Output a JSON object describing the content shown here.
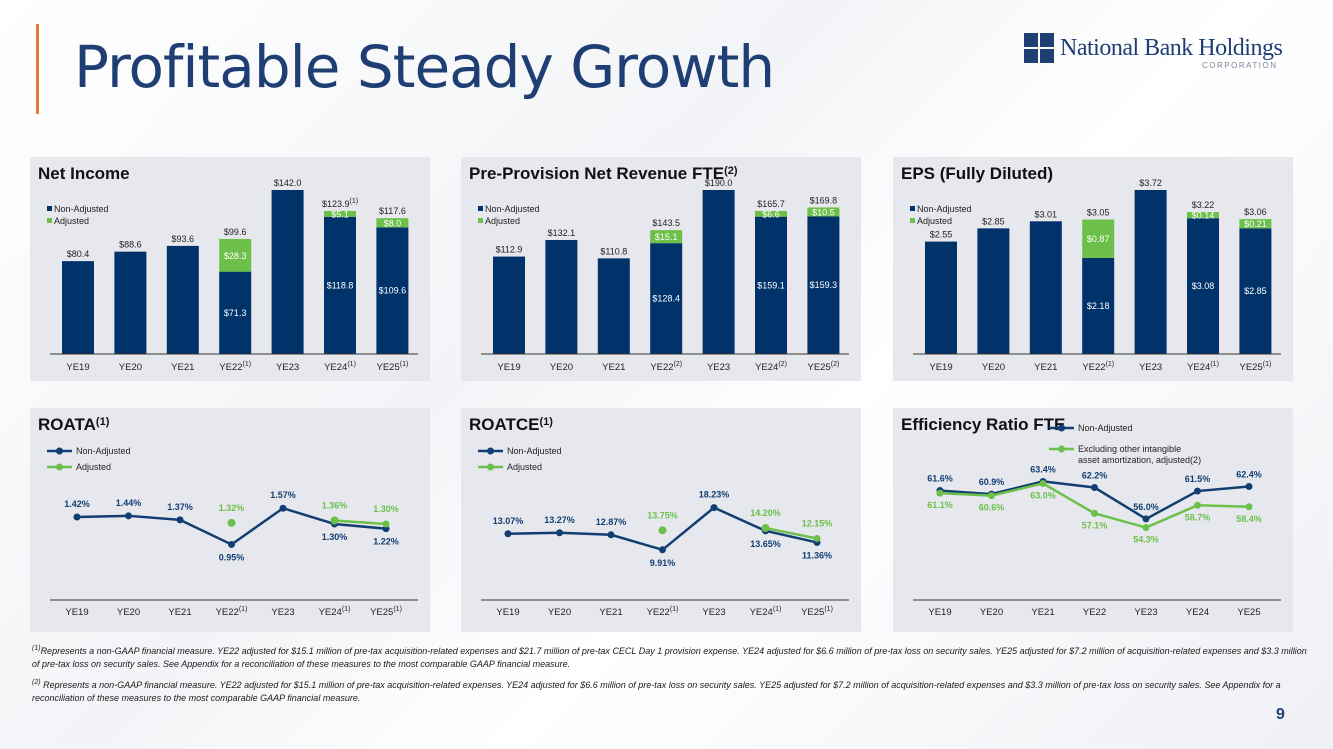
{
  "page": {
    "title": "Profitable Steady Growth",
    "page_number": "9",
    "logo_name": "National Bank Holdings",
    "logo_sub": "CORPORATION"
  },
  "colors": {
    "navy": "#00336a",
    "green": "#6cc04a",
    "panel": "#e6e8ee",
    "accent": "#e8793a",
    "line_navy": "#123e72",
    "line_green": "#6cc04a"
  },
  "footnotes": {
    "fn1_sup": "(1)",
    "fn1": "Represents a non-GAAP financial measure. YE22 adjusted for $15.1 million of pre-tax acquisition-related expenses and $21.7 million of pre-tax CECL Day 1 provision expense. YE24 adjusted for $6.6 million of pre-tax loss on security sales. YE25 adjusted for $7.2 million of acquisition-related expenses and $3.3 million of pre-tax loss on security sales. See Appendix for a reconciliation of these measures to the most comparable GAAP financial measure.",
    "fn2_sup": "(2)",
    "fn2": " Represents a non-GAAP financial measure. YE22 adjusted for $15.1 million of pre-tax acquisition-related expenses. YE24 adjusted for $6.6 million of pre-tax loss on security sales. YE25 adjusted for $7.2 million of acquisition-related expenses and $3.3 million of pre-tax loss on security sales. See Appendix for a reconciliation of these measures to the most comparable GAAP financial measure."
  },
  "chart_data": [
    {
      "id": "net_income",
      "type": "bar",
      "stacked": true,
      "title": "Net Income",
      "title_sup": "",
      "categories": [
        "YE19",
        "YE20",
        "YE21",
        "YE22",
        "YE23",
        "YE24",
        "YE25"
      ],
      "category_sups": [
        "",
        "",
        "",
        "(1)",
        "",
        "(1)",
        "(1)"
      ],
      "legend": [
        "Non-Adjusted",
        "Adjusted"
      ],
      "series": [
        {
          "name": "Non-Adjusted",
          "values": [
            80.4,
            88.6,
            93.6,
            71.3,
            142.0,
            118.8,
            109.6
          ],
          "labels": [
            "",
            "",
            "",
            "$71.3",
            "",
            "$118.8",
            "$109.6"
          ]
        },
        {
          "name": "Adjusted",
          "values": [
            0,
            0,
            0,
            28.3,
            0,
            5.1,
            8.0
          ],
          "labels": [
            "",
            "",
            "",
            "$28.3",
            "",
            "$5.1",
            "$8.0"
          ]
        }
      ],
      "totals": [
        "$80.4",
        "$88.6",
        "$93.6",
        "$99.6",
        "$142.0",
        "$123.9",
        "$117.6"
      ],
      "total_sups": [
        "",
        "",
        "",
        "",
        "",
        "(1)",
        ""
      ],
      "ylim": [
        0,
        142.0
      ]
    },
    {
      "id": "ppnr",
      "type": "bar",
      "stacked": true,
      "title": "Pre-Provision Net Revenue FTE",
      "title_sup": "(2)",
      "categories": [
        "YE19",
        "YE20",
        "YE21",
        "YE22",
        "YE23",
        "YE24",
        "YE25"
      ],
      "category_sups": [
        "",
        "",
        "",
        "(2)",
        "",
        "(2)",
        "(2)"
      ],
      "legend": [
        "Non-Adjusted",
        "Adjusted"
      ],
      "series": [
        {
          "name": "Non-Adjusted",
          "values": [
            112.9,
            132.1,
            110.8,
            128.4,
            190.0,
            159.1,
            159.3
          ],
          "labels": [
            "",
            "",
            "",
            "$128.4",
            "",
            "$159.1",
            "$159.3"
          ]
        },
        {
          "name": "Adjusted",
          "values": [
            0,
            0,
            0,
            15.1,
            0,
            6.6,
            10.5
          ],
          "labels": [
            "",
            "",
            "",
            "$15.1",
            "",
            "$6.6",
            "$10.5"
          ]
        }
      ],
      "totals": [
        "$112.9",
        "$132.1",
        "$110.8",
        "$143.5",
        "$190.0",
        "$165.7",
        "$169.8"
      ],
      "total_sups": [
        "",
        "",
        "",
        "",
        "",
        "",
        ""
      ],
      "ylim": [
        0,
        190.0
      ]
    },
    {
      "id": "eps",
      "type": "bar",
      "stacked": true,
      "title": "EPS (Fully Diluted)",
      "title_sup": "",
      "categories": [
        "YE19",
        "YE20",
        "YE21",
        "YE22",
        "YE23",
        "YE24",
        "YE25"
      ],
      "category_sups": [
        "",
        "",
        "",
        "(1)",
        "",
        "(1)",
        "(1)"
      ],
      "legend": [
        "Non-Adjusted",
        "Adjusted"
      ],
      "series": [
        {
          "name": "Non-Adjusted",
          "values": [
            2.55,
            2.85,
            3.01,
            2.18,
            3.72,
            3.08,
            2.85
          ],
          "labels": [
            "",
            "",
            "",
            "$2.18",
            "",
            "$3.08",
            "$2.85"
          ]
        },
        {
          "name": "Adjusted",
          "values": [
            0,
            0,
            0,
            0.87,
            0,
            0.14,
            0.21
          ],
          "labels": [
            "",
            "",
            "",
            "$0.87",
            "",
            "$0.14",
            "$0.21"
          ]
        }
      ],
      "totals": [
        "$2.55",
        "$2.85",
        "$3.01",
        "$3.05",
        "$3.72",
        "$3.22",
        "$3.06"
      ],
      "total_sups": [
        "",
        "",
        "",
        "",
        "",
        "",
        ""
      ],
      "ylim": [
        0,
        3.72
      ]
    },
    {
      "id": "roata",
      "type": "line",
      "title": "ROATA",
      "title_sup": "(1)",
      "categories": [
        "YE19",
        "YE20",
        "YE21",
        "YE22",
        "YE23",
        "YE24",
        "YE25"
      ],
      "category_sups": [
        "",
        "",
        "",
        "(1)",
        "",
        "(1)",
        "(1)"
      ],
      "legend": [
        "Non-Adjusted",
        "Adjusted"
      ],
      "series": [
        {
          "name": "Non-Adjusted",
          "values": [
            1.42,
            1.44,
            1.37,
            0.95,
            1.57,
            1.3,
            1.22
          ],
          "labels": [
            "1.42%",
            "1.44%",
            "1.37%",
            "0.95%",
            "1.57%",
            "1.30%",
            "1.22%"
          ]
        },
        {
          "name": "Adjusted",
          "values": [
            null,
            null,
            null,
            1.32,
            null,
            1.36,
            1.3
          ],
          "labels": [
            "",
            "",
            "",
            "1.32%",
            "",
            "1.36%",
            "1.30%"
          ]
        }
      ],
      "ylim": [
        0,
        2.6
      ]
    },
    {
      "id": "roatce",
      "type": "line",
      "title": "ROATCE",
      "title_sup": "(1)",
      "categories": [
        "YE19",
        "YE20",
        "YE21",
        "YE22",
        "YE23",
        "YE24",
        "YE25"
      ],
      "category_sups": [
        "",
        "",
        "",
        "(1)",
        "",
        "(1)",
        "(1)"
      ],
      "legend": [
        "Non-Adjusted",
        "Adjusted"
      ],
      "series": [
        {
          "name": "Non-Adjusted",
          "values": [
            13.07,
            13.27,
            12.87,
            9.91,
            18.23,
            13.65,
            11.36
          ],
          "labels": [
            "13.07%",
            "13.27%",
            "12.87%",
            "9.91%",
            "18.23%",
            "13.65%",
            "11.36%"
          ]
        },
        {
          "name": "Adjusted",
          "values": [
            null,
            null,
            null,
            13.75,
            null,
            14.2,
            12.15
          ],
          "labels": [
            "",
            "",
            "",
            "13.75%",
            "",
            "14.20%",
            "12.15%"
          ]
        }
      ],
      "ylim": [
        0,
        30
      ]
    },
    {
      "id": "efficiency",
      "type": "line",
      "title": "Efficiency Ratio FTE",
      "title_sup": "",
      "categories": [
        "YE19",
        "YE20",
        "YE21",
        "YE22",
        "YE23",
        "YE24",
        "YE25"
      ],
      "category_sups": [
        "",
        "",
        "",
        "",
        "",
        "",
        ""
      ],
      "legend": [
        "Non-Adjusted",
        "Excluding other intangible asset amortization, adjusted(2)"
      ],
      "series": [
        {
          "name": "Non-Adjusted",
          "values": [
            61.6,
            60.9,
            63.4,
            62.2,
            56.0,
            61.5,
            62.4
          ],
          "labels": [
            "61.6%",
            "60.9%",
            "63.4%",
            "62.2%",
            "56.0%",
            "61.5%",
            "62.4%"
          ]
        },
        {
          "name": "Excluding other intangible asset amortization, adjusted(2)",
          "values": [
            61.1,
            60.6,
            63.0,
            57.1,
            54.3,
            58.7,
            58.4
          ],
          "labels": [
            "61.1%",
            "60.6%",
            "63.0%",
            "57.1%",
            "54.3%",
            "58.7%",
            "58.4%"
          ]
        }
      ],
      "ylim": [
        40,
        70
      ]
    }
  ]
}
